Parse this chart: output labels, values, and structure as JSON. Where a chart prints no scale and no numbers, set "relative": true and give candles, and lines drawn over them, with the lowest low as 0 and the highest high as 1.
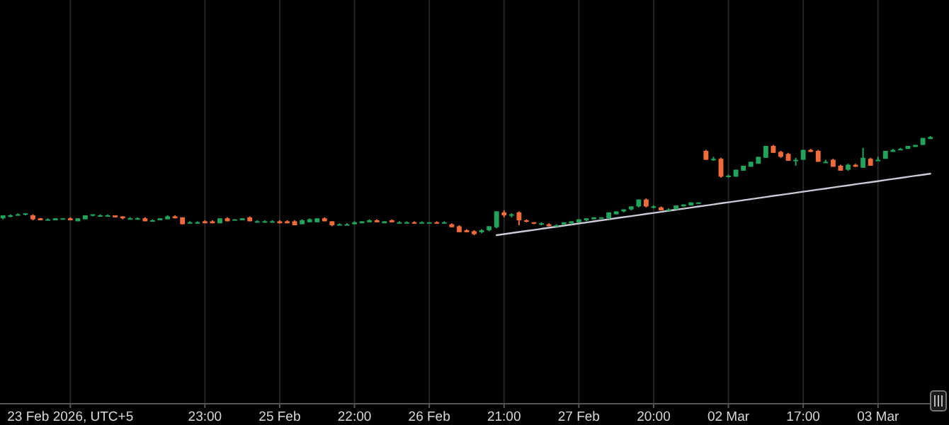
{
  "chart_data": {
    "type": "candlestick",
    "relative": true,
    "grid": "x",
    "categories": [
      null,
      null,
      null,
      null,
      null,
      null,
      null,
      null,
      null,
      "23 Feb 2026, UTC+5",
      null,
      null,
      null,
      null,
      null,
      null,
      null,
      null,
      null,
      null,
      null,
      null,
      null,
      null,
      null,
      null,
      null,
      "23:00",
      null,
      null,
      null,
      null,
      null,
      null,
      null,
      null,
      null,
      "25 Feb",
      null,
      null,
      null,
      null,
      null,
      null,
      null,
      null,
      null,
      "22:00",
      null,
      null,
      null,
      null,
      null,
      null,
      null,
      null,
      null,
      "26 Feb",
      null,
      null,
      null,
      null,
      null,
      null,
      null,
      null,
      null,
      "21:00",
      null,
      null,
      null,
      null,
      null,
      null,
      null,
      null,
      null,
      "27 Feb",
      null,
      null,
      null,
      null,
      null,
      null,
      null,
      null,
      null,
      "20:00",
      null,
      null,
      null,
      null,
      null,
      null,
      null,
      null,
      null,
      "02 Mar",
      null,
      null,
      null,
      null,
      null,
      null,
      null,
      null,
      null,
      "17:00",
      null,
      null,
      null,
      null,
      null,
      null,
      null,
      null,
      null,
      "03 Mar",
      null,
      null,
      null,
      null,
      null,
      null,
      null
    ],
    "ohlc": [
      [
        0.17,
        0.2,
        0.16,
        0.2
      ],
      [
        0.19,
        0.21,
        0.18,
        0.2
      ],
      [
        0.2,
        0.22,
        0.2,
        0.21
      ],
      [
        0.21,
        0.22,
        0.2,
        0.22
      ],
      [
        0.2,
        0.21,
        0.15,
        0.16
      ],
      [
        0.17,
        0.17,
        0.15,
        0.15
      ],
      [
        0.16,
        0.17,
        0.15,
        0.16
      ],
      [
        0.15,
        0.17,
        0.15,
        0.17
      ],
      [
        0.16,
        0.17,
        0.16,
        0.17
      ],
      [
        0.17,
        0.18,
        0.15,
        0.15
      ],
      [
        0.14,
        0.17,
        0.14,
        0.17
      ],
      [
        0.16,
        0.2,
        0.16,
        0.2
      ],
      [
        0.2,
        0.21,
        0.19,
        0.21
      ],
      [
        0.2,
        0.21,
        0.19,
        0.2
      ],
      [
        0.2,
        0.21,
        0.19,
        0.2
      ],
      [
        0.2,
        0.2,
        0.18,
        0.18
      ],
      [
        0.19,
        0.19,
        0.16,
        0.17
      ],
      [
        0.17,
        0.18,
        0.16,
        0.17
      ],
      [
        0.17,
        0.18,
        0.16,
        0.17
      ],
      [
        0.17,
        0.18,
        0.14,
        0.14
      ],
      [
        0.15,
        0.16,
        0.14,
        0.15
      ],
      [
        0.15,
        0.17,
        0.15,
        0.17
      ],
      [
        0.16,
        0.2,
        0.16,
        0.19
      ],
      [
        0.19,
        0.2,
        0.17,
        0.17
      ],
      [
        0.18,
        0.18,
        0.11,
        0.11
      ],
      [
        0.13,
        0.14,
        0.12,
        0.13
      ],
      [
        0.13,
        0.14,
        0.12,
        0.13
      ],
      [
        0.14,
        0.15,
        0.12,
        0.12
      ],
      [
        0.14,
        0.15,
        0.12,
        0.12
      ],
      [
        0.12,
        0.17,
        0.12,
        0.17
      ],
      [
        0.17,
        0.18,
        0.14,
        0.14
      ],
      [
        0.16,
        0.16,
        0.15,
        0.16
      ],
      [
        0.15,
        0.17,
        0.15,
        0.17
      ],
      [
        0.18,
        0.19,
        0.14,
        0.14
      ],
      [
        0.14,
        0.15,
        0.13,
        0.14
      ],
      [
        0.14,
        0.15,
        0.13,
        0.14
      ],
      [
        0.14,
        0.15,
        0.13,
        0.14
      ],
      [
        0.14,
        0.15,
        0.12,
        0.12
      ],
      [
        0.14,
        0.15,
        0.12,
        0.12
      ],
      [
        0.14,
        0.15,
        0.1,
        0.1
      ],
      [
        0.11,
        0.16,
        0.11,
        0.15
      ],
      [
        0.13,
        0.17,
        0.13,
        0.16
      ],
      [
        0.13,
        0.17,
        0.13,
        0.17
      ],
      [
        0.17,
        0.18,
        0.14,
        0.14
      ],
      [
        0.14,
        0.14,
        0.09,
        0.1
      ],
      [
        0.11,
        0.12,
        0.1,
        0.11
      ],
      [
        0.11,
        0.12,
        0.1,
        0.11
      ],
      [
        0.11,
        0.14,
        0.11,
        0.13
      ],
      [
        0.12,
        0.14,
        0.12,
        0.14
      ],
      [
        0.13,
        0.16,
        0.13,
        0.15
      ],
      [
        0.15,
        0.16,
        0.13,
        0.13
      ],
      [
        0.12,
        0.14,
        0.12,
        0.14
      ],
      [
        0.15,
        0.16,
        0.13,
        0.13
      ],
      [
        0.13,
        0.14,
        0.12,
        0.13
      ],
      [
        0.13,
        0.14,
        0.12,
        0.13
      ],
      [
        0.13,
        0.14,
        0.12,
        0.12
      ],
      [
        0.13,
        0.14,
        0.12,
        0.13
      ],
      [
        0.13,
        0.13,
        0.12,
        0.13
      ],
      [
        0.13,
        0.14,
        0.12,
        0.12
      ],
      [
        0.13,
        0.14,
        0.12,
        0.13
      ],
      [
        0.11,
        0.12,
        0.08,
        0.08
      ],
      [
        0.09,
        0.1,
        0.03,
        0.03
      ],
      [
        0.05,
        0.06,
        0.03,
        0.03
      ],
      [
        0.04,
        0.05,
        0,
        0.01
      ],
      [
        0.03,
        0.06,
        0.02,
        0.05
      ],
      [
        0.05,
        0.09,
        0.04,
        0.09
      ],
      [
        0.08,
        0.24,
        0.07,
        0.24
      ],
      [
        0.23,
        0.25,
        0.18,
        0.2
      ],
      [
        0.21,
        0.22,
        0.18,
        0.21
      ],
      [
        0.23,
        0.24,
        0.1,
        0.15
      ],
      [
        0.15,
        0.16,
        0.13,
        0.14
      ],
      [
        0.13,
        0.13,
        0.11,
        0.12
      ],
      [
        0.12,
        0.13,
        0.1,
        0.12
      ],
      [
        0.11,
        0.12,
        0.09,
        0.09
      ],
      [
        0.1,
        0.11,
        0.09,
        0.1
      ],
      [
        0.11,
        0.13,
        0.1,
        0.13
      ],
      [
        0.12,
        0.14,
        0.11,
        0.14
      ],
      [
        0.13,
        0.16,
        0.13,
        0.16
      ],
      [
        0.15,
        0.17,
        0.14,
        0.17
      ],
      [
        0.16,
        0.18,
        0.16,
        0.18
      ],
      [
        0.17,
        0.18,
        0.17,
        0.18
      ],
      [
        0.17,
        0.23,
        0.16,
        0.23
      ],
      [
        0.21,
        0.24,
        0.21,
        0.24
      ],
      [
        0.24,
        0.26,
        0.23,
        0.26
      ],
      [
        0.26,
        0.29,
        0.25,
        0.29
      ],
      [
        0.29,
        0.36,
        0.28,
        0.36
      ],
      [
        0.36,
        0.37,
        0.28,
        0.29
      ],
      [
        0.29,
        0.3,
        0.27,
        0.29
      ],
      [
        0.28,
        0.29,
        0.25,
        0.25
      ],
      [
        0.26,
        0.27,
        0.25,
        0.26
      ],
      [
        0.26,
        0.3,
        0.26,
        0.3
      ],
      [
        0.29,
        0.31,
        0.29,
        0.31
      ],
      [
        0.3,
        0.33,
        0.3,
        0.33
      ],
      [
        0.32,
        0.33,
        0.32,
        0.33
      ],
      [
        0.85,
        0.86,
        0.76,
        0.76
      ],
      [
        0.77,
        0.79,
        0.75,
        0.77
      ],
      [
        0.77,
        0.78,
        0.58,
        0.59
      ],
      [
        0.6,
        0.61,
        0.58,
        0.6
      ],
      [
        0.59,
        0.66,
        0.59,
        0.66
      ],
      [
        0.65,
        0.7,
        0.65,
        0.7
      ],
      [
        0.69,
        0.74,
        0.69,
        0.74
      ],
      [
        0.72,
        0.79,
        0.72,
        0.79
      ],
      [
        0.78,
        0.9,
        0.78,
        0.9
      ],
      [
        0.9,
        0.91,
        0.83,
        0.83
      ],
      [
        0.84,
        0.85,
        0.78,
        0.79
      ],
      [
        0.82,
        0.83,
        0.75,
        0.75
      ],
      [
        0.76,
        0.78,
        0.7,
        0.76
      ],
      [
        0.76,
        0.86,
        0.76,
        0.86
      ],
      [
        0.86,
        0.87,
        0.84,
        0.84
      ],
      [
        0.85,
        0.86,
        0.74,
        0.74
      ],
      [
        0.74,
        0.76,
        0.73,
        0.74
      ],
      [
        0.76,
        0.77,
        0.69,
        0.69
      ],
      [
        0.7,
        0.71,
        0.65,
        0.65
      ],
      [
        0.66,
        0.72,
        0.65,
        0.71
      ],
      [
        0.71,
        0.72,
        0.69,
        0.69
      ],
      [
        0.68,
        0.88,
        0.68,
        0.78
      ],
      [
        0.77,
        0.78,
        0.7,
        0.7
      ],
      [
        0.76,
        0.79,
        0.75,
        0.76
      ],
      [
        0.77,
        0.85,
        0.77,
        0.85
      ],
      [
        0.84,
        0.87,
        0.84,
        0.86
      ],
      [
        0.86,
        0.88,
        0.86,
        0.87
      ],
      [
        0.87,
        0.9,
        0.87,
        0.9
      ],
      [
        0.89,
        0.91,
        0.89,
        0.91
      ],
      [
        0.91,
        0.98,
        0.91,
        0.98
      ],
      [
        0.97,
        1,
        0.97,
        0.99
      ]
    ],
    "colors": [
      "#21a35c",
      "#21a35c",
      "#21a35c",
      "#21a35c",
      "#ef6b3b",
      "#ef6b3b",
      "#21a35c",
      "#21a35c",
      "#21a35c",
      "#ef6b3b",
      "#21a35c",
      "#21a35c",
      "#21a35c",
      "#21a35c",
      "#21a35c",
      "#ef6b3b",
      "#ef6b3b",
      "#21a35c",
      "#21a35c",
      "#ef6b3b",
      "#21a35c",
      "#21a35c",
      "#21a35c",
      "#ef6b3b",
      "#ef6b3b",
      "#21a35c",
      "#21a35c",
      "#ef6b3b",
      "#ef6b3b",
      "#21a35c",
      "#ef6b3b",
      "#21a35c",
      "#21a35c",
      "#ef6b3b",
      "#21a35c",
      "#21a35c",
      "#21a35c",
      "#ef6b3b",
      "#ef6b3b",
      "#ef6b3b",
      "#21a35c",
      "#21a35c",
      "#21a35c",
      "#ef6b3b",
      "#ef6b3b",
      "#21a35c",
      "#21a35c",
      "#21a35c",
      "#21a35c",
      "#21a35c",
      "#ef6b3b",
      "#21a35c",
      "#ef6b3b",
      "#21a35c",
      "#21a35c",
      "#ef6b3b",
      "#21a35c",
      "#21a35c",
      "#ef6b3b",
      "#21a35c",
      "#ef6b3b",
      "#ef6b3b",
      "#ef6b3b",
      "#ef6b3b",
      "#21a35c",
      "#21a35c",
      "#21a35c",
      "#ef6b3b",
      "#21a35c",
      "#ef6b3b",
      "#ef6b3b",
      "#ef6b3b",
      "#21a35c",
      "#ef6b3b",
      "#21a35c",
      "#21a35c",
      "#21a35c",
      "#21a35c",
      "#21a35c",
      "#21a35c",
      "#21a35c",
      "#21a35c",
      "#21a35c",
      "#21a35c",
      "#21a35c",
      "#21a35c",
      "#ef6b3b",
      "#21a35c",
      "#ef6b3b",
      "#21a35c",
      "#21a35c",
      "#21a35c",
      "#21a35c",
      "#21a35c",
      "#ef6b3b",
      "#21a35c",
      "#ef6b3b",
      "#21a35c",
      "#21a35c",
      "#21a35c",
      "#21a35c",
      "#21a35c",
      "#21a35c",
      "#ef6b3b",
      "#ef6b3b",
      "#ef6b3b",
      "#21a35c",
      "#21a35c",
      "#ef6b3b",
      "#ef6b3b",
      "#21a35c",
      "#ef6b3b",
      "#ef6b3b",
      "#21a35c",
      "#ef6b3b",
      "#21a35c",
      "#ef6b3b",
      "#21a35c",
      "#21a35c",
      "#21a35c",
      "#21a35c",
      "#21a35c",
      "#21a35c",
      "#21a35c",
      "#21a35c"
    ],
    "series": [
      {
        "type": "line",
        "color": "#c9cbd6",
        "values": [
          null,
          null,
          null,
          null,
          null,
          null,
          null,
          null,
          null,
          null,
          null,
          null,
          null,
          null,
          null,
          null,
          null,
          null,
          null,
          null,
          null,
          null,
          null,
          null,
          null,
          null,
          null,
          null,
          null,
          null,
          null,
          null,
          null,
          null,
          null,
          null,
          null,
          null,
          null,
          null,
          null,
          null,
          null,
          null,
          null,
          null,
          null,
          null,
          null,
          null,
          null,
          null,
          null,
          null,
          null,
          null,
          null,
          null,
          null,
          null,
          null,
          null,
          null,
          null,
          null,
          null,
          0,
          0.011,
          0.021,
          0.032,
          0.043,
          0.053,
          0.064,
          0.075,
          0.086,
          0.096,
          0.107,
          0.118,
          0.128,
          0.139,
          0.15,
          0.16,
          0.171,
          0.182,
          0.192,
          0.203,
          0.214,
          0.224,
          0.235,
          0.246,
          0.257,
          0.267,
          0.278,
          0.289,
          0.299,
          0.31,
          0.321,
          0.331,
          0.342,
          0.353,
          0.363,
          0.374,
          0.385,
          0.396,
          0.406,
          0.417,
          0.428,
          0.438,
          0.449,
          0.46,
          0.47,
          0.481,
          0.492,
          0.502,
          0.513,
          0.524,
          0.534,
          0.545,
          0.556,
          0.567,
          0.577,
          0.588,
          0.599,
          0.609,
          0.62
        ]
      }
    ]
  }
}
